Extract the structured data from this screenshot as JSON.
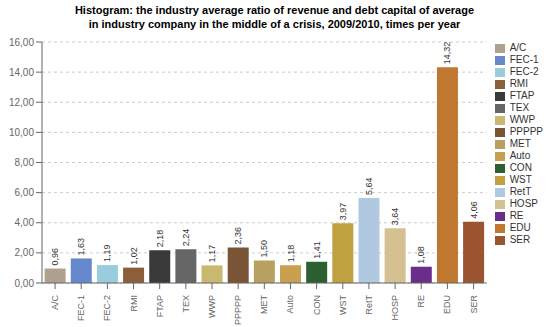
{
  "chart_data": {
    "type": "bar",
    "title": "Histogram: the industry average ratio of revenue and debt capital of average",
    "subtitle": "in industry company in the middle of a crisis, 2009/2010, times per year",
    "categories": [
      "A/C",
      "FEC-1",
      "FEC-2",
      "RMI",
      "FTAP",
      "TEX",
      "WWP",
      "PPPPP",
      "MET",
      "Auto",
      "CON",
      "WST",
      "RetT",
      "HOSP",
      "RE",
      "EDU",
      "SER"
    ],
    "values": [
      0.96,
      1.63,
      1.19,
      1.02,
      2.18,
      2.24,
      1.17,
      2.36,
      1.5,
      1.18,
      1.41,
      3.97,
      5.64,
      3.64,
      1.08,
      14.32,
      4.06
    ],
    "value_labels": [
      "0,96",
      "1,63",
      "1,19",
      "1,02",
      "2,18",
      "2,24",
      "1,17",
      "2,36",
      "1,50",
      "1,18",
      "1,41",
      "3,97",
      "5,64",
      "3,64",
      "1,08",
      "14,32",
      "4,06"
    ],
    "colors": [
      "#b0a090",
      "#6688cc",
      "#99ccdd",
      "#8B5E3C",
      "#3a3a3a",
      "#666666",
      "#c8b870",
      "#7a5535",
      "#b8a060",
      "#c8a050",
      "#2d6030",
      "#c0a040",
      "#b0c8e0",
      "#d4c090",
      "#6B2D8B",
      "#c07830",
      "#9a5530"
    ],
    "ylim": [
      0,
      16
    ],
    "yticks": [
      {
        "value": 0,
        "label": "0,00"
      },
      {
        "value": 2,
        "label": "2,00"
      },
      {
        "value": 4,
        "label": "4,00"
      },
      {
        "value": 6,
        "label": "6,00"
      },
      {
        "value": 8,
        "label": "8,00"
      },
      {
        "value": 10,
        "label": "10,00"
      },
      {
        "value": 12,
        "label": "12,00"
      },
      {
        "value": 14,
        "label": "14,00"
      },
      {
        "value": 16,
        "label": "16,00"
      }
    ],
    "grid": true,
    "legend": "right",
    "data_labels": true
  }
}
